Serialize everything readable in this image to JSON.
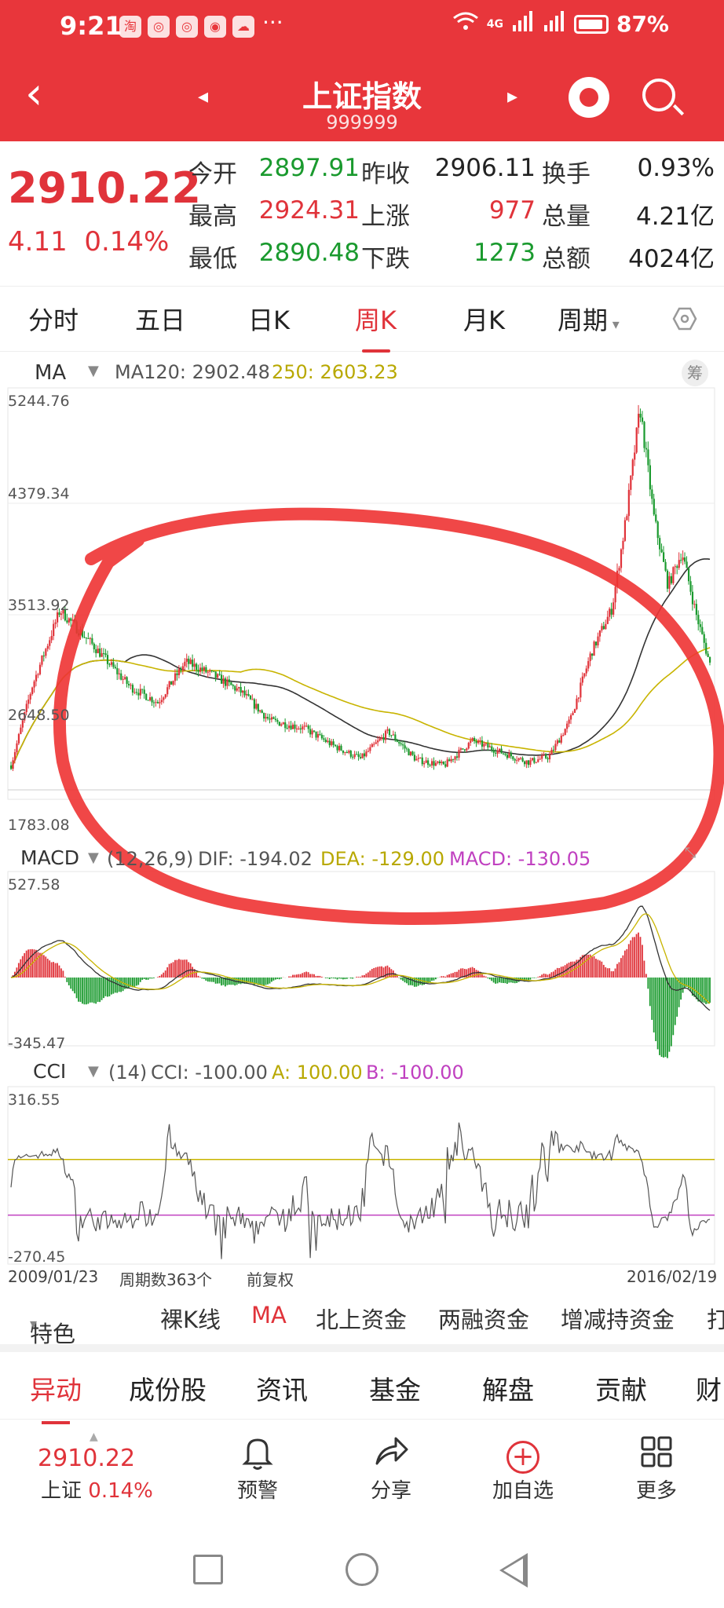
{
  "status_bar": {
    "time": "9:21",
    "app_icons": [
      "淘",
      "◎",
      "◎",
      "◉",
      "☁"
    ],
    "more": "···",
    "network": "4G",
    "battery": "87%"
  },
  "header": {
    "title": "上证指数",
    "code": "999999",
    "back": "‹",
    "prev": "◂",
    "next": "▸"
  },
  "quote": {
    "price": "2910.22",
    "change": "4.11",
    "change_pct": "0.14%",
    "rows": [
      [
        {
          "label": "今开",
          "value": "2897.91",
          "color": "#1a9a2e"
        },
        {
          "label": "昨收",
          "value": "2906.11",
          "color": "#222222"
        },
        {
          "label": "换手",
          "value": "0.93%",
          "color": "#222222"
        }
      ],
      [
        {
          "label": "最高",
          "value": "2924.31",
          "color": "#e0333a"
        },
        {
          "label": "上涨",
          "value": "977",
          "color": "#e0333a"
        },
        {
          "label": "总量",
          "value": "4.21亿",
          "color": "#222222"
        }
      ],
      [
        {
          "label": "最低",
          "value": "2890.48",
          "color": "#1a9a2e"
        },
        {
          "label": "下跌",
          "value": "1273",
          "color": "#1a9a2e"
        },
        {
          "label": "总额",
          "value": "4024亿",
          "color": "#222222"
        }
      ]
    ]
  },
  "period_tabs": {
    "items": [
      "分时",
      "五日",
      "日K",
      "周K",
      "月K",
      "周期"
    ],
    "active": 3
  },
  "chart": {
    "ma_label": "MA",
    "ma120": "MA120: 2902.48",
    "ma250": "250: 2603.23",
    "chip_button": "筹",
    "price_ticks": [
      "5244.76",
      "4379.34",
      "3513.92",
      "2648.50",
      "1783.08"
    ],
    "macd_label": "MACD",
    "macd_params": "(12,26,9)",
    "dif": "DIF: -194.02",
    "dea": "DEA: -129.00",
    "macd_value": "MACD: -130.05",
    "macd_ticks": [
      "527.58",
      "-345.47"
    ],
    "cci_label": "CCI",
    "cci_params": "(14)",
    "cci_value": "CCI: -100.00",
    "cci_a": "A: 100.00",
    "cci_b": "B: -100.00",
    "cci_ticks": [
      "316.55",
      "-270.45"
    ],
    "start_date": "2009/01/23",
    "period_count": "周期数363个",
    "adjust": "前复权",
    "end_date": "2016/02/19",
    "colors": {
      "up": "#e0333a",
      "down": "#1a9a2e",
      "ma120": "#333333",
      "ma250": "#c8b400",
      "dea": "#c8b400",
      "cci_b": "#c040c0",
      "circle": "#ee3333"
    }
  },
  "indicators": {
    "items": [
      "特色",
      "裸K线",
      "MA",
      "北上资金",
      "两融资金",
      "增减持资金",
      "打"
    ],
    "active": 2
  },
  "bottom_tabs": {
    "items": [
      "异动",
      "成份股",
      "资讯",
      "基金",
      "解盘",
      "贡献",
      "财"
    ],
    "active": 0
  },
  "action_bar": {
    "price": "2910.22",
    "name": "上证",
    "pct": "0.14%",
    "items": [
      {
        "label": "预警",
        "icon": "bell-icon"
      },
      {
        "label": "分享",
        "icon": "share-icon"
      },
      {
        "label": "加自选",
        "icon": "plus-circle-icon"
      },
      {
        "label": "更多",
        "icon": "grid-icon"
      }
    ]
  }
}
